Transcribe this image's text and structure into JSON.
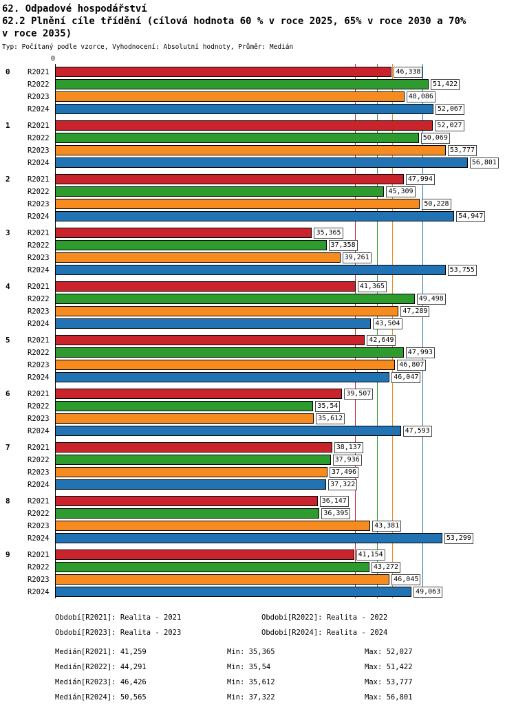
{
  "header": {
    "title": "62. Odpadové hospodářství",
    "subtitle": "62.2 Plnění cíle třídění (cílová hodnota 60 % v roce 2025, 65% v roce 2030 a 70% v roce 2035)",
    "meta": "Typ: Počítaný podle vzorce, Vyhodnocení: Absolutní hodnoty, Průměr: Medián"
  },
  "chart_data": {
    "type": "bar",
    "orientation": "horizontal",
    "x_axis": {
      "origin_label": "0",
      "min": 0,
      "max": 62.5,
      "gridlines": false
    },
    "categories": [
      "0",
      "1",
      "2",
      "3",
      "4",
      "5",
      "6",
      "7",
      "8",
      "9"
    ],
    "series": [
      {
        "name": "R2021",
        "color": "#c9242b",
        "period": "Realita - 2021",
        "median": 41.259,
        "median_label": "41,259",
        "min_label": "35,365",
        "max_label": "52,027"
      },
      {
        "name": "R2022",
        "color": "#2e9b2e",
        "period": "Realita - 2022",
        "median": 44.291,
        "median_label": "44,291",
        "min_label": "35,54",
        "max_label": "51,422"
      },
      {
        "name": "R2023",
        "color": "#f68b1f",
        "period": "Realita - 2023",
        "median": 46.426,
        "median_label": "46,426",
        "min_label": "35,612",
        "max_label": "53,777"
      },
      {
        "name": "R2024",
        "color": "#2173b4",
        "period": "Realita - 2024",
        "median": 50.565,
        "median_label": "50,565",
        "min_label": "37,322",
        "max_label": "56,801"
      }
    ],
    "values": [
      [
        46.338,
        51.422,
        48.086,
        52.067
      ],
      [
        52.027,
        50.069,
        53.777,
        56.801
      ],
      [
        47.994,
        45.309,
        50.228,
        54.947
      ],
      [
        35.365,
        37.358,
        39.261,
        53.755
      ],
      [
        41.365,
        49.498,
        47.289,
        43.504
      ],
      [
        42.649,
        47.993,
        46.807,
        46.047
      ],
      [
        39.507,
        35.54,
        35.612,
        47.593
      ],
      [
        38.137,
        37.936,
        37.496,
        37.322
      ],
      [
        36.147,
        36.395,
        43.381,
        53.299
      ],
      [
        41.154,
        43.272,
        46.045,
        49.063
      ]
    ],
    "value_labels": [
      [
        "46,338",
        "51,422",
        "48,086",
        "52,067"
      ],
      [
        "52,027",
        "50,069",
        "53,777",
        "56,801"
      ],
      [
        "47,994",
        "45,309",
        "50,228",
        "54,947"
      ],
      [
        "35,365",
        "37,358",
        "39,261",
        "53,755"
      ],
      [
        "41,365",
        "49,498",
        "47,289",
        "43,504"
      ],
      [
        "42,649",
        "47,993",
        "46,807",
        "46,047"
      ],
      [
        "39,507",
        "35,54",
        "35,612",
        "47,593"
      ],
      [
        "38,137",
        "37,936",
        "37,496",
        "37,322"
      ],
      [
        "36,147",
        "36,395",
        "43,381",
        "53,299"
      ],
      [
        "41,154",
        "43,272",
        "46,045",
        "49,063"
      ]
    ]
  },
  "legend": {
    "items": [
      "Období[R2021]: Realita - 2021",
      "Období[R2022]: Realita - 2022",
      "Období[R2023]: Realita - 2023",
      "Období[R2024]: Realita - 2024"
    ]
  },
  "stats": {
    "rows": [
      {
        "median": "Medián[R2021]: 41,259",
        "min": "Min: 35,365",
        "max": "Max: 52,027"
      },
      {
        "median": "Medián[R2022]: 44,291",
        "min": "Min: 35,54",
        "max": "Max: 51,422"
      },
      {
        "median": "Medián[R2023]: 46,426",
        "min": "Min: 35,612",
        "max": "Max: 53,777"
      },
      {
        "median": "Medián[R2024]: 50,565",
        "min": "Min: 37,322",
        "max": "Max: 56,801"
      }
    ]
  }
}
